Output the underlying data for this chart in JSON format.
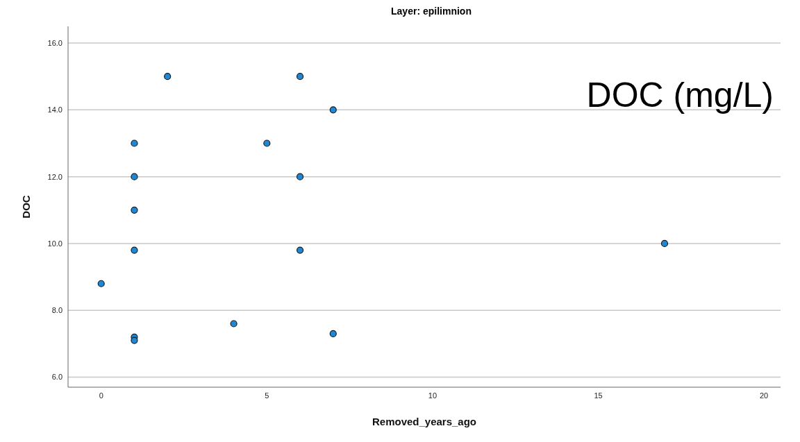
{
  "chart_data": {
    "type": "scatter",
    "title": "Layer: epilimnion",
    "xlabel": "Removed_years_ago",
    "ylabel": "DOC",
    "annotations": [
      "DOC (mg/L)"
    ],
    "x": [
      0,
      1,
      1,
      1,
      1,
      1,
      1,
      2,
      4,
      5,
      6,
      6,
      6,
      7,
      7,
      17
    ],
    "series": [
      {
        "color": "#1e88d8",
        "values": [
          8.8,
          13,
          12,
          11,
          9.8,
          7.2,
          7.1,
          15,
          7.6,
          13,
          15,
          12,
          9.8,
          14,
          7.3,
          10
        ]
      }
    ],
    "xlim": [
      -1,
      20.5
    ],
    "xticks": [
      0,
      5,
      10,
      15,
      20
    ],
    "ylim": [
      5.7,
      16.5
    ],
    "yticks": [
      {
        "value": 6,
        "label": "6.0"
      },
      {
        "value": 8,
        "label": "8.0"
      },
      {
        "value": 10,
        "label": "10.0"
      },
      {
        "value": 12,
        "label": "12.0"
      },
      {
        "value": 14,
        "label": "14.0"
      },
      {
        "value": 16,
        "label": "16.0"
      }
    ],
    "grid": "y",
    "marker": "circle"
  }
}
